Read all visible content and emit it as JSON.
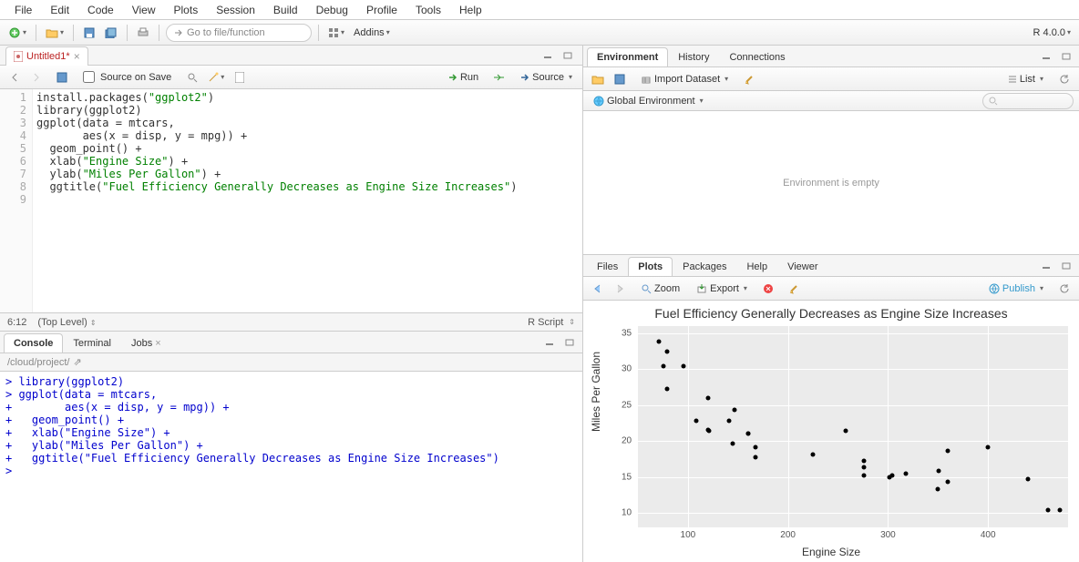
{
  "menubar": [
    "File",
    "Edit",
    "Code",
    "View",
    "Plots",
    "Session",
    "Build",
    "Debug",
    "Profile",
    "Tools",
    "Help"
  ],
  "toolbar": {
    "goto_placeholder": "Go to file/function",
    "addins_label": "Addins",
    "r_version": "R 4.0.0"
  },
  "source": {
    "filename": "Untitled1*",
    "source_on_save": "Source on Save",
    "run": "Run",
    "source_btn": "Source",
    "cursor": "6:12",
    "scope": "(Top Level)",
    "lang": "R Script",
    "lines": [
      "install.packages(\"ggplot2\")",
      "library(ggplot2)",
      "ggplot(data = mtcars,",
      "       aes(x = disp, y = mpg)) +",
      "  geom_point() +",
      "  xlab(\"Engine Size\") +",
      "  ylab(\"Miles Per Gallon\") +",
      "  ggtitle(\"Fuel Efficiency Generally Decreases as Engine Size Increases\")",
      ""
    ]
  },
  "console_tabs": [
    "Console",
    "Terminal",
    "Jobs"
  ],
  "console": {
    "path": "/cloud/project/",
    "lines": [
      "> library(ggplot2)",
      "> ggplot(data = mtcars,",
      "+        aes(x = disp, y = mpg)) +",
      "+   geom_point() +",
      "+   xlab(\"Engine Size\") +",
      "+   ylab(\"Miles Per Gallon\") +",
      "+   ggtitle(\"Fuel Efficiency Generally Decreases as Engine Size Increases\")",
      "> "
    ]
  },
  "env_tabs": [
    "Environment",
    "History",
    "Connections"
  ],
  "env": {
    "import": "Import Dataset",
    "scope": "Global Environment",
    "list": "List",
    "empty": "Environment is empty"
  },
  "plot_tabs": [
    "Files",
    "Plots",
    "Packages",
    "Help",
    "Viewer"
  ],
  "plots": {
    "zoom": "Zoom",
    "export": "Export",
    "publish": "Publish"
  },
  "chart": {
    "type": "scatter",
    "title": "Fuel Efficiency Generally Decreases as Engine Size Increases",
    "xlabel": "Engine Size",
    "ylabel": "Miles Per Gallon",
    "xlim": [
      50,
      480
    ],
    "ylim": [
      8,
      36
    ],
    "xticks": [
      100,
      200,
      300,
      400
    ],
    "yticks": [
      10,
      15,
      20,
      25,
      30,
      35
    ],
    "panel_bg": "#ebebeb",
    "grid_color": "#ffffff",
    "point_color": "#000000",
    "point_size": 5,
    "points": [
      [
        160,
        21
      ],
      [
        160,
        21
      ],
      [
        108,
        22.8
      ],
      [
        258,
        21.4
      ],
      [
        360,
        18.7
      ],
      [
        225,
        18.1
      ],
      [
        360,
        14.3
      ],
      [
        146.7,
        24.4
      ],
      [
        140.8,
        22.8
      ],
      [
        167.6,
        19.2
      ],
      [
        167.6,
        17.8
      ],
      [
        275.8,
        16.4
      ],
      [
        275.8,
        17.3
      ],
      [
        275.8,
        15.2
      ],
      [
        472,
        10.4
      ],
      [
        460,
        10.4
      ],
      [
        440,
        14.7
      ],
      [
        78.7,
        32.4
      ],
      [
        75.7,
        30.4
      ],
      [
        71.1,
        33.9
      ],
      [
        120.1,
        21.5
      ],
      [
        318,
        15.5
      ],
      [
        304,
        15.2
      ],
      [
        350,
        13.3
      ],
      [
        400,
        19.2
      ],
      [
        79,
        27.3
      ],
      [
        120.3,
        26
      ],
      [
        95.1,
        30.4
      ],
      [
        351,
        15.8
      ],
      [
        145,
        19.7
      ],
      [
        301,
        15
      ],
      [
        121,
        21.4
      ]
    ]
  }
}
